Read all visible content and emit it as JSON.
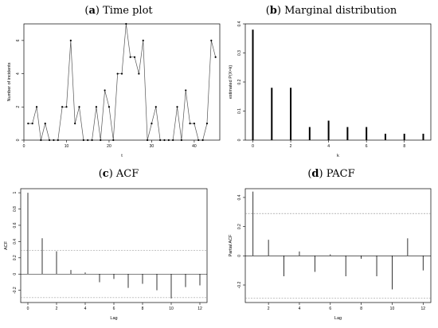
{
  "chart_data": [
    {
      "id": "a",
      "type": "line",
      "title_label": "a",
      "title": "Time plot",
      "xlabel": "t",
      "ylabel": "Number of incidents",
      "xlim": [
        0,
        46
      ],
      "ylim": [
        0,
        7
      ],
      "xticks": [
        0,
        10,
        20,
        30,
        40
      ],
      "yticks": [
        0,
        2,
        4,
        6
      ],
      "grid": false,
      "x": [
        1,
        2,
        3,
        4,
        5,
        6,
        7,
        8,
        9,
        10,
        11,
        12,
        13,
        14,
        15,
        16,
        17,
        18,
        19,
        20,
        21,
        22,
        23,
        24,
        25,
        26,
        27,
        28,
        29,
        30,
        31,
        32,
        33,
        34,
        35,
        36,
        37,
        38,
        39,
        40,
        41,
        42,
        43,
        44,
        45
      ],
      "values": [
        1,
        1,
        2,
        0,
        1,
        0,
        0,
        0,
        2,
        2,
        6,
        1,
        2,
        0,
        0,
        0,
        2,
        0,
        3,
        2,
        0,
        4,
        4,
        7,
        5,
        5,
        4,
        6,
        0,
        1,
        2,
        0,
        0,
        0,
        0,
        2,
        0,
        3,
        1,
        1,
        0,
        0,
        1,
        6,
        5
      ]
    },
    {
      "id": "b",
      "type": "bar",
      "title_label": "b",
      "title": "Marginal distribution",
      "xlabel": "k",
      "ylabel": "estimated P(X=k)",
      "xlim": [
        -0.4,
        9.4
      ],
      "ylim": [
        0,
        0.4
      ],
      "xticks": [
        0,
        2,
        4,
        6,
        8
      ],
      "yticks": [
        0.0,
        0.1,
        0.2,
        0.3,
        0.4
      ],
      "grid": false,
      "categories": [
        0,
        1,
        2,
        3,
        4,
        5,
        6,
        7,
        8,
        9
      ],
      "values": [
        0.38,
        0.18,
        0.18,
        0.045,
        0.067,
        0.045,
        0.045,
        0.022,
        0.022,
        0.022
      ]
    },
    {
      "id": "c",
      "type": "bar",
      "title_label": "c",
      "title": "ACF",
      "xlabel": "Lag",
      "ylabel": "ACF",
      "xlim": [
        -0.5,
        12.5
      ],
      "ylim": [
        -0.35,
        1.05
      ],
      "xticks": [
        0,
        2,
        4,
        6,
        8,
        10,
        12
      ],
      "yticks": [
        -0.2,
        0.0,
        0.2,
        0.4,
        0.6,
        0.8,
        1.0
      ],
      "grid": false,
      "conf_limits": [
        0.29,
        -0.29
      ],
      "categories": [
        0,
        1,
        2,
        3,
        4,
        5,
        6,
        7,
        8,
        9,
        10,
        11,
        12
      ],
      "values": [
        1.0,
        0.44,
        0.28,
        0.05,
        0.02,
        -0.1,
        -0.06,
        -0.17,
        -0.12,
        -0.2,
        -0.3,
        -0.16,
        -0.14
      ]
    },
    {
      "id": "d",
      "type": "bar",
      "title_label": "d",
      "title": "PACF",
      "xlabel": "Lag",
      "ylabel": "Partial ACF",
      "xlim": [
        0.5,
        12.5
      ],
      "ylim": [
        -0.32,
        0.46
      ],
      "xticks": [
        2,
        4,
        6,
        8,
        10,
        12
      ],
      "yticks": [
        -0.2,
        0.0,
        0.2,
        0.4
      ],
      "grid": false,
      "conf_limits": [
        0.29,
        -0.29
      ],
      "categories": [
        1,
        2,
        3,
        4,
        5,
        6,
        7,
        8,
        9,
        10,
        11,
        12
      ],
      "values": [
        0.44,
        0.11,
        -0.14,
        0.03,
        -0.11,
        0.01,
        -0.14,
        -0.02,
        -0.14,
        -0.23,
        0.12,
        -0.1
      ]
    }
  ]
}
